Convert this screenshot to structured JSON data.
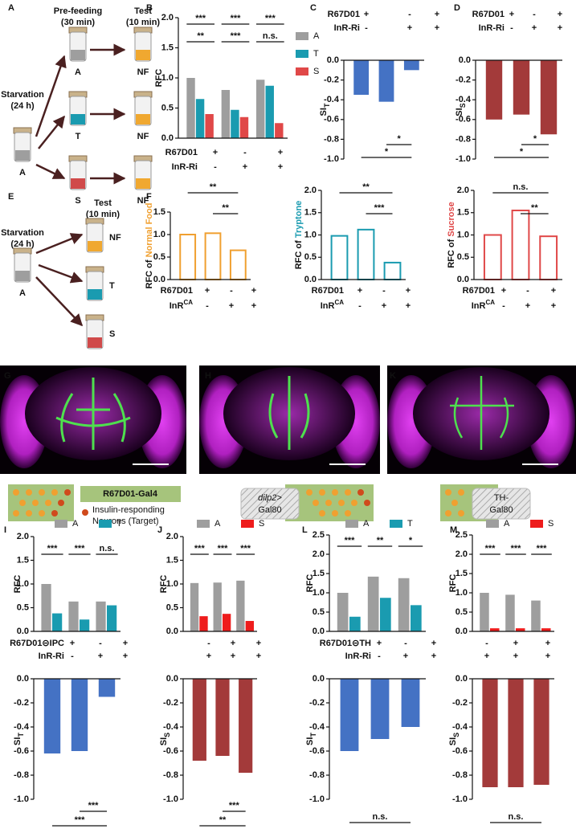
{
  "panel_labels": [
    "A",
    "B",
    "C",
    "D",
    "E",
    "F",
    "G",
    "H",
    "K",
    "I",
    "J",
    "L",
    "M"
  ],
  "diagram_a": {
    "prefeeding": "Pre-feeding",
    "prefeeding_time": "(30 min)",
    "test": "Test",
    "test_time": "(10 min)",
    "starvation": "Starvation",
    "starvation_time": "(24 h)",
    "start_vial": "A",
    "prefeed_vials": [
      "A",
      "T",
      "S"
    ],
    "test_vials": [
      "NF",
      "NF",
      "NF"
    ]
  },
  "diagram_e": {
    "test": "Test",
    "test_time": "(10 min)",
    "starvation": "Starvation",
    "starvation_time": "(24 h)",
    "start_vial": "A",
    "test_vials": [
      "NF",
      "T",
      "S"
    ]
  },
  "schematics": {
    "g_label": "R67D01-Gal4",
    "g_legend": [
      "Insulin-responding",
      "Neurons (Target)"
    ],
    "h_label": [
      "dilp2>",
      "Gal80"
    ],
    "k_label": [
      "TH-",
      "Gal80"
    ]
  },
  "chart_data": [
    {
      "type": "bar",
      "ylabel": "RFC",
      "categories": [
        null,
        null,
        null
      ],
      "series": [
        {
          "name": "A",
          "color": "#9e9e9e",
          "values": [
            1.0,
            0.8,
            0.97
          ]
        },
        {
          "name": "T",
          "color": "#1a9bb0",
          "values": [
            0.65,
            0.47,
            0.87
          ]
        },
        {
          "name": "S",
          "color": "#e04848",
          "values": [
            0.4,
            0.35,
            0.25
          ]
        }
      ],
      "ylim": [
        0,
        2
      ],
      "yticks": [
        {
          "value": 0,
          "label": "0.0"
        },
        0.5,
        {
          "value": 1,
          "label": "1.0"
        },
        1.5,
        {
          "value": 2,
          "label": "2.0"
        }
      ],
      "legend": "right",
      "significance_rows": [
        [
          {
            "text": "***",
            "from": 0,
            "to": 0,
            "color": "#d03838"
          },
          {
            "text": "***",
            "from": 1,
            "to": 1,
            "color": "#d03838"
          },
          {
            "text": "***",
            "from": 2,
            "to": 2,
            "color": "#d03838"
          }
        ],
        [
          {
            "text": "**",
            "from": 0,
            "to": 0,
            "color": "#1a9bb0"
          },
          {
            "text": "***",
            "from": 1,
            "to": 1,
            "color": "#1a9bb0"
          },
          {
            "text": "n.s.",
            "from": 2,
            "to": 2,
            "color": "#1a9bb0"
          }
        ]
      ],
      "conditions": [
        {
          "label": "R67D01",
          "values": [
            "+",
            "-",
            "+"
          ]
        },
        {
          "label": "InR-Ri",
          "values": [
            "-",
            "+",
            "+"
          ]
        }
      ]
    },
    {
      "type": "bar",
      "ylabel": "SI",
      "ylabel_sub": "T",
      "categories": [
        null,
        null,
        null
      ],
      "values": [
        -0.35,
        -0.42,
        -0.1
      ],
      "color": "#4472c4",
      "ylim": [
        -1,
        0
      ],
      "yticks": [
        {
          "value": -1,
          "label": "-1.0"
        },
        -0.8,
        -0.6,
        -0.4,
        -0.2,
        {
          "value": 0,
          "label": "0.0"
        }
      ],
      "significance_rows": [
        [
          {
            "text": "*",
            "from": 1,
            "to": 2
          }
        ],
        [
          {
            "text": "*",
            "from": 0,
            "to": 2
          }
        ]
      ],
      "conditions": [
        {
          "label": "R67D01",
          "values": [
            "+",
            "-",
            "+"
          ]
        },
        {
          "label": "InR-Ri",
          "values": [
            "-",
            "+",
            "+"
          ]
        }
      ]
    },
    {
      "type": "bar",
      "ylabel": "SI",
      "ylabel_sub": "S",
      "categories": [
        null,
        null,
        null
      ],
      "values": [
        -0.6,
        -0.55,
        -0.75
      ],
      "color": "#a33a3a",
      "ylim": [
        -1,
        0
      ],
      "yticks": [
        {
          "value": -1,
          "label": "-1.0"
        },
        -0.8,
        -0.6,
        -0.4,
        -0.2,
        {
          "value": 0,
          "label": "0.0"
        }
      ],
      "significance_rows": [
        [
          {
            "text": "*",
            "from": 1,
            "to": 2
          }
        ],
        [
          {
            "text": "*",
            "from": 0,
            "to": 2
          }
        ]
      ],
      "conditions": [
        {
          "label": "R67D01",
          "values": [
            "+",
            "-",
            "+"
          ]
        },
        {
          "label": "InR-Ri",
          "values": [
            "-",
            "+",
            "+"
          ]
        }
      ]
    },
    {
      "type": "bar",
      "style": "outline",
      "ylabel": "RFC of ",
      "ylabel_colored": "Normal Food",
      "categories": [
        null,
        null,
        null
      ],
      "values": [
        1.0,
        1.03,
        0.65
      ],
      "color": "#f0a030",
      "ylim": [
        0,
        1.5
      ],
      "yticks": [
        {
          "value": 0,
          "label": "0.0"
        },
        0.5,
        {
          "value": 1,
          "label": "1.0"
        },
        1.5
      ],
      "significance_rows": [
        [
          {
            "text": "**",
            "from": 0,
            "to": 2
          }
        ],
        [
          {
            "text": "**",
            "from": 1,
            "to": 2
          }
        ]
      ],
      "conditions": [
        {
          "label": "R67D01",
          "values": [
            "+",
            "-",
            "+"
          ]
        },
        {
          "label": "InR",
          "sup": "CA",
          "values": [
            "-",
            "+",
            "+"
          ]
        }
      ]
    },
    {
      "type": "bar",
      "style": "outline",
      "ylabel": "RFC of ",
      "ylabel_colored": "Tryptone",
      "categories": [
        null,
        null,
        null
      ],
      "values": [
        0.98,
        1.12,
        0.38
      ],
      "color": "#1a9bb0",
      "ylim": [
        0,
        2
      ],
      "yticks": [
        {
          "value": 0,
          "label": "0.0"
        },
        0.5,
        {
          "value": 1,
          "label": "1.0"
        },
        1.5,
        {
          "value": 2,
          "label": "2.0"
        }
      ],
      "significance_rows": [
        [
          {
            "text": "**",
            "from": 0,
            "to": 2
          }
        ],
        [
          {
            "text": "***",
            "from": 1,
            "to": 2
          }
        ]
      ],
      "conditions": [
        {
          "label": "R67D01",
          "values": [
            "+",
            "-",
            "+"
          ]
        },
        {
          "label": "InR",
          "sup": "CA",
          "values": [
            "-",
            "+",
            "+"
          ]
        }
      ]
    },
    {
      "type": "bar",
      "style": "outline",
      "ylabel": "RFC of ",
      "ylabel_colored": "Sucrose",
      "categories": [
        null,
        null,
        null
      ],
      "values": [
        1.0,
        1.55,
        0.97
      ],
      "color": "#e04848",
      "ylim": [
        0,
        2
      ],
      "yticks": [
        {
          "value": 0,
          "label": "0.0"
        },
        0.5,
        {
          "value": 1,
          "label": "1.0"
        },
        1.5,
        {
          "value": 2,
          "label": "2.0"
        }
      ],
      "significance_rows": [
        [
          {
            "text": "n.s.",
            "from": 0,
            "to": 2
          }
        ],
        [
          {
            "text": "**",
            "from": 1,
            "to": 2
          }
        ]
      ],
      "conditions": [
        {
          "label": "R67D01",
          "values": [
            "+",
            "-",
            "+"
          ]
        },
        {
          "label": "InR",
          "sup": "CA",
          "values": [
            "-",
            "+",
            "+"
          ]
        }
      ]
    },
    {
      "type": "bar",
      "ylabel": "RFC",
      "categories": [
        null,
        null,
        null
      ],
      "series": [
        {
          "name": "A",
          "color": "#9e9e9e",
          "values": [
            1.0,
            0.63,
            0.63
          ]
        },
        {
          "name": "T",
          "color": "#1a9bb0",
          "values": [
            0.38,
            0.25,
            0.55
          ]
        }
      ],
      "ylim": [
        0,
        2
      ],
      "yticks": [
        {
          "value": 0,
          "label": "0.0"
        },
        0.5,
        {
          "value": 1,
          "label": "1.0"
        },
        1.5,
        {
          "value": 2,
          "label": "2.0"
        }
      ],
      "legend": "top",
      "significance_rows": [
        [
          {
            "text": "***",
            "from": 0,
            "to": 0
          },
          {
            "text": "***",
            "from": 1,
            "to": 1
          },
          {
            "text": "n.s.",
            "from": 2,
            "to": 2
          }
        ]
      ],
      "conditions": [
        {
          "label": "R67D01⊝IPC",
          "values": [
            "+",
            "-",
            "+"
          ]
        },
        {
          "label": "InR-Ri",
          "values": [
            "-",
            "+",
            "+"
          ]
        }
      ]
    },
    {
      "type": "bar",
      "ylabel": "SI",
      "ylabel_sub": "T",
      "categories": [
        null,
        null,
        null
      ],
      "values": [
        -0.62,
        -0.6,
        -0.15
      ],
      "color": "#4472c4",
      "ylim": [
        -1,
        0
      ],
      "yticks": [
        {
          "value": -1,
          "label": "-1.0"
        },
        -0.8,
        -0.6,
        -0.4,
        -0.2,
        {
          "value": 0,
          "label": "0.0"
        }
      ],
      "significance_rows": [
        [
          {
            "text": "***",
            "from": 1,
            "to": 2
          }
        ],
        [
          {
            "text": "***",
            "from": 0,
            "to": 2
          }
        ]
      ]
    },
    {
      "type": "bar",
      "ylabel": "RFC",
      "categories": [
        null,
        null,
        null
      ],
      "series": [
        {
          "name": "A",
          "color": "#9e9e9e",
          "values": [
            1.02,
            1.03,
            1.07
          ]
        },
        {
          "name": "S",
          "color": "#ee1c1c",
          "values": [
            0.32,
            0.37,
            0.22
          ]
        }
      ],
      "ylim": [
        0,
        2
      ],
      "yticks": [
        {
          "value": 0,
          "label": "0.0"
        },
        0.5,
        {
          "value": 1,
          "label": "1.0"
        },
        1.5,
        {
          "value": 2,
          "label": "2.0"
        }
      ],
      "legend": "top",
      "significance_rows": [
        [
          {
            "text": "***",
            "from": 0,
            "to": 0
          },
          {
            "text": "***",
            "from": 1,
            "to": 1
          },
          {
            "text": "***",
            "from": 2,
            "to": 2
          }
        ]
      ],
      "conditions": [
        {
          "values": [
            "-",
            "+",
            "+"
          ]
        },
        {
          "values": [
            "+",
            "+",
            "+"
          ]
        }
      ]
    },
    {
      "type": "bar",
      "ylabel": "SI",
      "ylabel_sub": "S",
      "categories": [
        null,
        null,
        null
      ],
      "values": [
        -0.68,
        -0.64,
        -0.78
      ],
      "color": "#a33a3a",
      "ylim": [
        -1,
        0
      ],
      "yticks": [
        {
          "value": -1,
          "label": "-1.0"
        },
        -0.8,
        -0.6,
        -0.4,
        -0.2,
        {
          "value": 0,
          "label": "0.0"
        }
      ],
      "significance_rows": [
        [
          {
            "text": "***",
            "from": 1,
            "to": 2
          }
        ],
        [
          {
            "text": "**",
            "from": 0,
            "to": 2
          }
        ]
      ]
    },
    {
      "type": "bar",
      "ylabel": "RFC",
      "categories": [
        null,
        null,
        null
      ],
      "series": [
        {
          "name": "A",
          "color": "#9e9e9e",
          "values": [
            1.0,
            1.42,
            1.38
          ]
        },
        {
          "name": "T",
          "color": "#1a9bb0",
          "values": [
            0.38,
            0.87,
            0.68
          ]
        }
      ],
      "ylim": [
        0,
        2.5
      ],
      "yticks": [
        {
          "value": 0,
          "label": "0.0"
        },
        0.5,
        {
          "value": 1,
          "label": "1.0"
        },
        1.5,
        {
          "value": 2,
          "label": "2.0"
        },
        2.5
      ],
      "legend": "top",
      "significance_rows": [
        [
          {
            "text": "***",
            "from": 0,
            "to": 0
          },
          {
            "text": "**",
            "from": 1,
            "to": 1
          },
          {
            "text": "*",
            "from": 2,
            "to": 2
          }
        ]
      ],
      "conditions": [
        {
          "label": "R67D01⊝TH",
          "values": [
            "+",
            "-",
            "+"
          ]
        },
        {
          "label": "InR-Ri",
          "values": [
            "-",
            "+",
            "+"
          ]
        }
      ]
    },
    {
      "type": "bar",
      "ylabel": "SI",
      "ylabel_sub": "T",
      "categories": [
        null,
        null,
        null
      ],
      "values": [
        -0.6,
        -0.5,
        -0.4
      ],
      "color": "#4472c4",
      "ylim": [
        -1,
        0
      ],
      "yticks": [
        {
          "value": -1,
          "label": "-1.0"
        },
        -0.8,
        -0.6,
        -0.4,
        -0.2,
        {
          "value": 0,
          "label": "0.0"
        }
      ],
      "significance_rows": [
        [
          {
            "text": "n.s.",
            "from": 0,
            "to": 2
          }
        ]
      ]
    },
    {
      "type": "bar",
      "ylabel": "RFC",
      "categories": [
        null,
        null,
        null
      ],
      "series": [
        {
          "name": "A",
          "color": "#9e9e9e",
          "values": [
            1.0,
            0.95,
            0.8
          ]
        },
        {
          "name": "S",
          "color": "#ee1c1c",
          "values": [
            0.08,
            0.08,
            0.08
          ]
        }
      ],
      "ylim": [
        0,
        2.5
      ],
      "yticks": [
        {
          "value": 0,
          "label": "0.0"
        },
        0.5,
        {
          "value": 1,
          "label": "1.0"
        },
        1.5,
        {
          "value": 2,
          "label": "2.0"
        },
        2.5
      ],
      "legend": "top",
      "significance_rows": [
        [
          {
            "text": "***",
            "from": 0,
            "to": 0
          },
          {
            "text": "***",
            "from": 1,
            "to": 1
          },
          {
            "text": "***",
            "from": 2,
            "to": 2
          }
        ]
      ],
      "conditions": [
        {
          "values": [
            "-",
            "+",
            "+"
          ]
        },
        {
          "values": [
            "+",
            "+",
            "+"
          ]
        }
      ]
    },
    {
      "type": "bar",
      "ylabel": "SI",
      "ylabel_sub": "S",
      "categories": [
        null,
        null,
        null
      ],
      "values": [
        -0.9,
        -0.9,
        -0.88
      ],
      "color": "#a33a3a",
      "ylim": [
        -1,
        0
      ],
      "yticks": [
        {
          "value": -1,
          "label": "-1.0"
        },
        -0.8,
        -0.6,
        -0.4,
        -0.2,
        {
          "value": 0,
          "label": "0.0"
        }
      ],
      "significance_rows": [
        [
          {
            "text": "n.s.",
            "from": 0,
            "to": 2
          }
        ]
      ]
    }
  ]
}
